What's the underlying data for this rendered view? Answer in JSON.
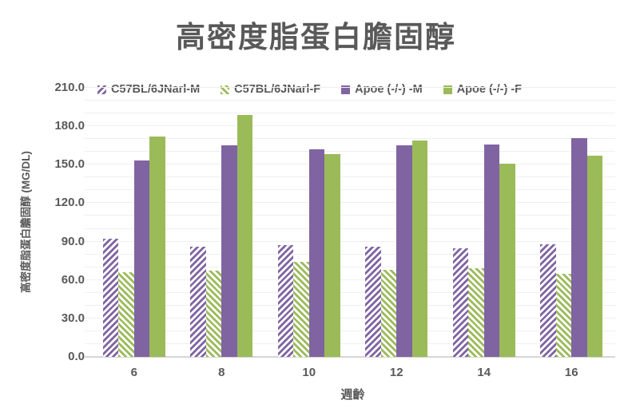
{
  "title": "高密度脂蛋白膽固醇",
  "colors": {
    "purple": "#8064A2",
    "green": "#9BBB59",
    "text": "#595959",
    "gridline": "#EFEFEF",
    "axis": "#D6D6D6",
    "background": "#FFFFFF"
  },
  "chart_data": {
    "type": "bar",
    "title": "高密度脂蛋白膽固醇",
    "xlabel": "週齡",
    "ylabel": "高密度脂蛋白膽固醇 (MG/DL)",
    "categories": [
      "6",
      "8",
      "10",
      "12",
      "14",
      "16"
    ],
    "series": [
      {
        "name": "C57BL/6JNarl-M",
        "color": "#8064A2",
        "pattern": "diagonal-up",
        "values": [
          92,
          86,
          87,
          86,
          85,
          88
        ]
      },
      {
        "name": "C57BL/6JNarl-F",
        "color": "#9BBB59",
        "pattern": "diagonal-down",
        "values": [
          66,
          67,
          74,
          68,
          69,
          65
        ]
      },
      {
        "name": "Apoe (-/-) -M",
        "color": "#8064A2",
        "pattern": "solid",
        "values": [
          153,
          165,
          162,
          165,
          166,
          171
        ]
      },
      {
        "name": "Apoe (-/-) -F",
        "color": "#9BBB59",
        "pattern": "solid",
        "values": [
          172,
          189,
          158,
          169,
          151,
          157
        ]
      }
    ],
    "ylim": [
      0,
      210
    ],
    "yticks": [
      "210.0",
      "180.0",
      "150.0",
      "120.0",
      "90.0",
      "60.0",
      "30.0",
      "0.0"
    ],
    "gridline_step": 10,
    "grid": true,
    "legend_position": "top"
  }
}
